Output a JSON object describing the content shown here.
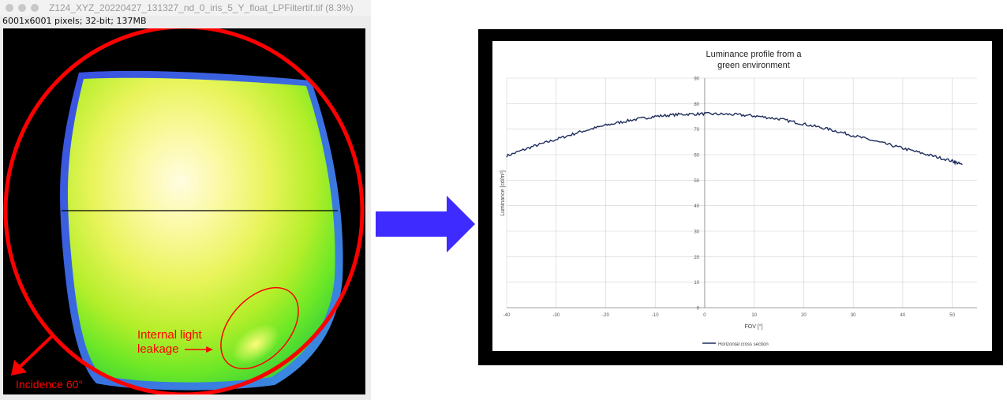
{
  "window": {
    "title": "Z124_XYZ_20220427_131327_nd_0_iris_5_Y_float_LPFiltertif.tif (8.3%)",
    "info": "6001x6001 pixels; 32-bit; 137MB"
  },
  "annotations": {
    "leakage_line1": "Internal light",
    "leakage_line2": "leakage",
    "incidence": "Incidence 60°",
    "color": "#ff0000"
  },
  "arrow_color": "#3d2bff",
  "chart_data": {
    "type": "line",
    "title_line1": "Luminance profile from a",
    "title_line2": "green environment",
    "xlabel": "FOV [°]",
    "ylabel": "Luminance [cd/m²]",
    "xlim": [
      -40,
      55
    ],
    "ylim": [
      0,
      90
    ],
    "x_ticks": [
      -40,
      -30,
      -20,
      -10,
      0,
      10,
      20,
      30,
      40,
      50
    ],
    "y_ticks": [
      0,
      10,
      20,
      30,
      40,
      50,
      60,
      70,
      80,
      90
    ],
    "grid": true,
    "legend_position": "bottom",
    "series": [
      {
        "name": "Horizontal cross section",
        "color": "#1f2d5c",
        "x": [
          -40,
          -35,
          -30,
          -25,
          -20,
          -15,
          -10,
          -5,
          0,
          5,
          10,
          15,
          20,
          25,
          30,
          35,
          40,
          45,
          50,
          52
        ],
        "y": [
          59.5,
          63,
          66,
          69,
          71.5,
          73.5,
          75,
          75.8,
          76,
          75.8,
          75.2,
          74,
          72,
          70,
          67.5,
          65,
          62.5,
          60,
          57.5,
          56
        ]
      }
    ]
  }
}
